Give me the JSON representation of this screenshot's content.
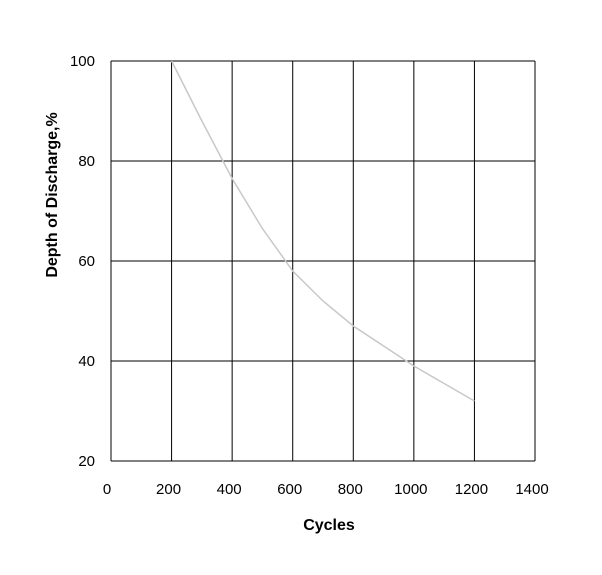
{
  "chart_data": {
    "type": "line",
    "title": "",
    "xlabel": "Cycles",
    "ylabel": "Depth of Discharge,%",
    "xlim": [
      0,
      1400
    ],
    "ylim": [
      20,
      100
    ],
    "x_ticks": [
      "0",
      "200",
      "400",
      "600",
      "800",
      "1000",
      "1200",
      "1400"
    ],
    "y_ticks": [
      "20",
      "40",
      "60",
      "80",
      "100"
    ],
    "grid": true,
    "legend": "none",
    "series": [
      {
        "color": "#c8c8c8",
        "x": [
          200,
          300,
          400,
          500,
          600,
          700,
          800,
          900,
          1000,
          1100,
          1200
        ],
        "y": [
          100,
          88,
          76.5,
          66.5,
          58,
          52,
          47,
          43,
          39,
          35.5,
          32
        ]
      }
    ]
  }
}
